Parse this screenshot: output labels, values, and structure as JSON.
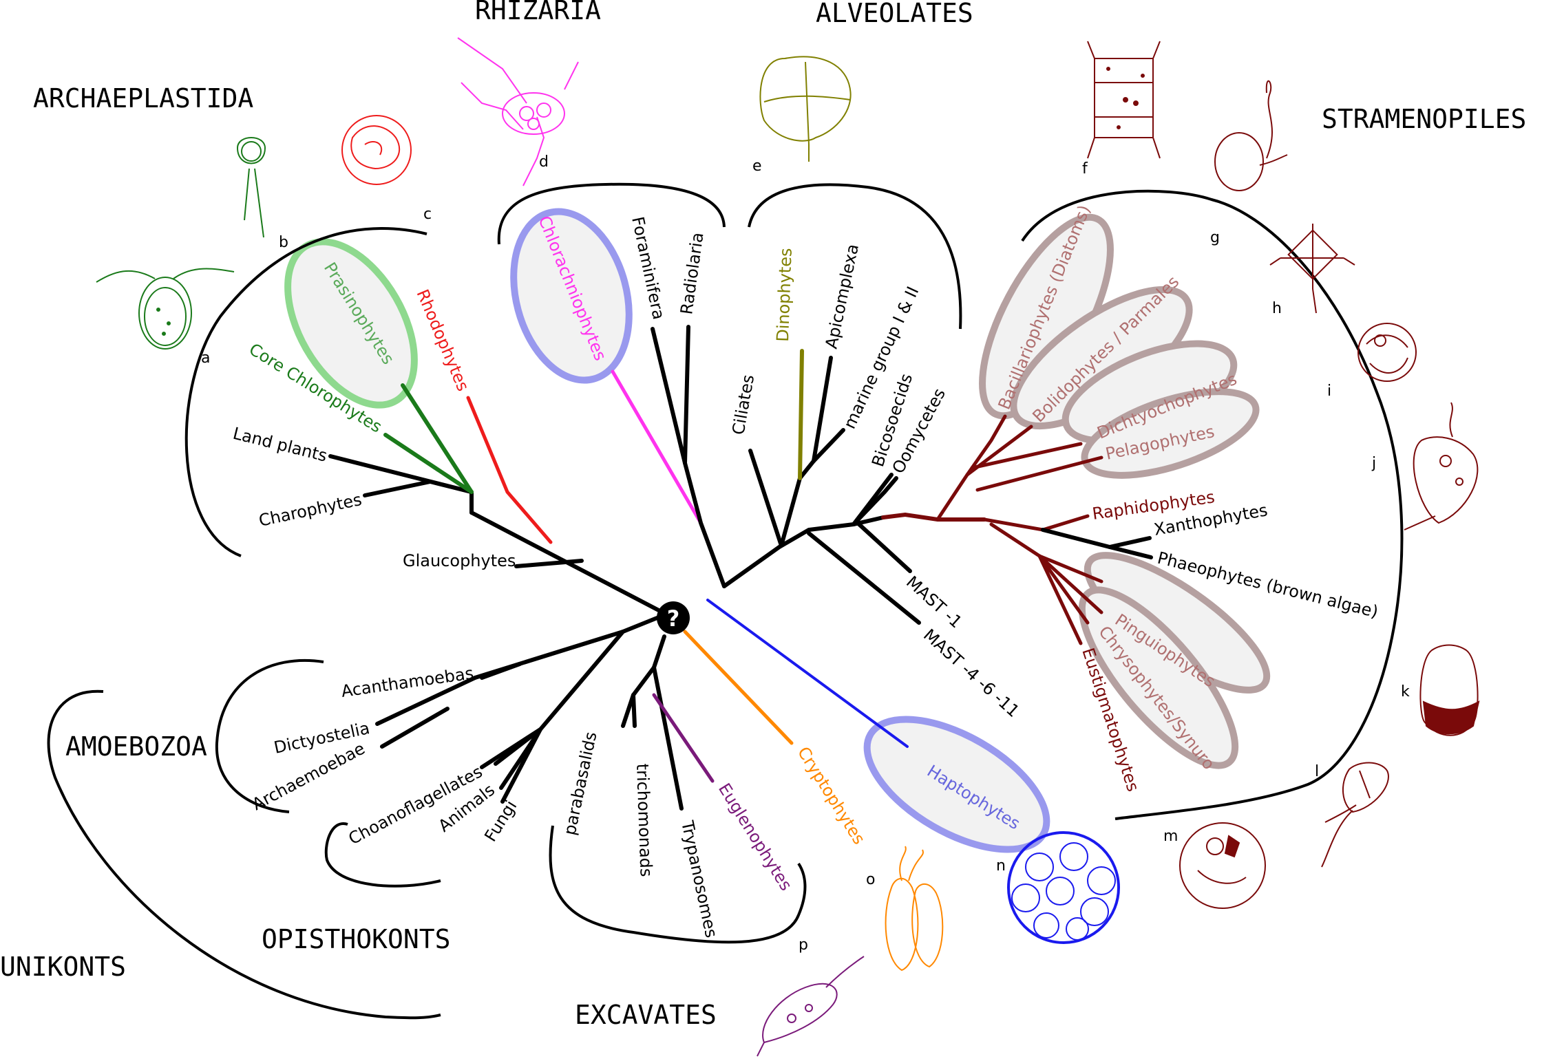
{
  "colors": {
    "black": "#000000",
    "green": "#1a7a1a",
    "light_green": "#8ed98e",
    "red": "#ee1c1c",
    "magenta": "#ff33ee",
    "olive": "#808000",
    "maroon": "#7a0a0a",
    "rose": "#b07070",
    "orange": "#ff8800",
    "purple": "#7a1a7a",
    "blue": "#1a1aee",
    "light_blue": "#9999ee"
  },
  "root_symbol": "?",
  "supergroups": {
    "archaeplastida": "ARCHAEPLASTIDA",
    "rhizaria": "RHIZARIA",
    "alveolates": "ALVEOLATES",
    "stramenopiles": "STRAMENOPILES",
    "amoebozoa": "AMOEBOZOA",
    "opisthokonts": "OPISTHOKONTS",
    "unikonts": "UNIKONTS",
    "excavates": "EXCAVATES"
  },
  "taxa": {
    "prasinophytes": "Prasinophytes",
    "core_chlorophytes": "Core Chlorophytes",
    "rhodophytes": "Rhodophytes",
    "land_plants": "Land plants",
    "charophytes": "Charophytes",
    "glaucophytes": "Glaucophytes",
    "chlorarachniophytes": "Chlorachniophytes",
    "foraminifera": "Foraminifera",
    "radiolaria": "Radiolaria",
    "dinophytes": "Dinophytes",
    "apicomplexa": "Apicomplexa",
    "ciliates": "Ciliates",
    "marine_group": "marine group I & II",
    "bicosoecids": "Bicosoecids",
    "oomycetes": "Oomycetes",
    "mast1": "MAST -1",
    "mast4": "MAST -4 -6 -11",
    "bacillariophytes": "Bacillariophytes (Diatoms)",
    "bolidophytes": "Bolidophytes / Parmales",
    "dichtyochophytes": "Dichtyochophytes",
    "pelagophytes": "Pelagophytes",
    "raphidophytes": "Raphidophytes",
    "xanthophytes": "Xanthophytes",
    "phaeophytes": "Phaeophytes (brown algae)",
    "pinguiophytes": "Pinguiophytes",
    "chrysophytes": "Chrysophytes/Synuro",
    "eustigmatophytes": "Eustigmatophytes",
    "acanthamoebas": "Acanthamoebas",
    "dictyostelia": "Dictyostelia",
    "archaemoebae": "Archaemoebae",
    "choanoflagellates": "Choanoflagellates",
    "animals": "Animals",
    "fungi": "Fungi",
    "parabasalids": "parabasalids",
    "trichomonads": "trichomonads",
    "trypanosomes": "Trypanosomes",
    "euglenophytes": "Euglenophytes",
    "cryptophytes": "Cryptophytes",
    "haptophytes": "Haptophytes"
  },
  "panel_letters": [
    "a",
    "b",
    "c",
    "d",
    "e",
    "f",
    "g",
    "h",
    "i",
    "j",
    "k",
    "l",
    "m",
    "n",
    "o",
    "p"
  ]
}
